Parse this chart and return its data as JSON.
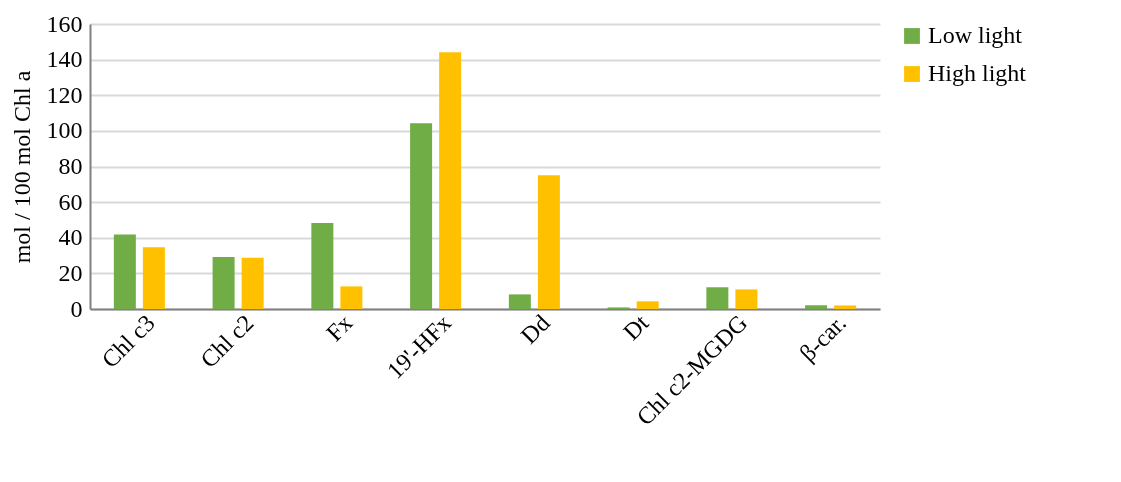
{
  "chart_data": {
    "type": "bar",
    "ylabel": "mol / 100 mol Chl a",
    "categories": [
      "Chl c3",
      "Chl c2",
      "Fx",
      "19'-HFx",
      "Dd",
      "Dt",
      "Chl c2-MGDG",
      "β-car."
    ],
    "series": [
      {
        "name": "Low light",
        "color": "#70ad47",
        "values": [
          41.8,
          29.2,
          48.3,
          104.3,
          8.2,
          0.9,
          12.2,
          2.1
        ]
      },
      {
        "name": "High light",
        "color": "#ffc000",
        "values": [
          34.6,
          28.8,
          12.7,
          144.2,
          75.1,
          4.3,
          11,
          2
        ]
      }
    ],
    "ylim": [
      0,
      160
    ],
    "yticks": [
      0,
      20,
      40,
      60,
      80,
      100,
      120,
      140,
      160
    ],
    "grid": "y",
    "legend": "right"
  }
}
